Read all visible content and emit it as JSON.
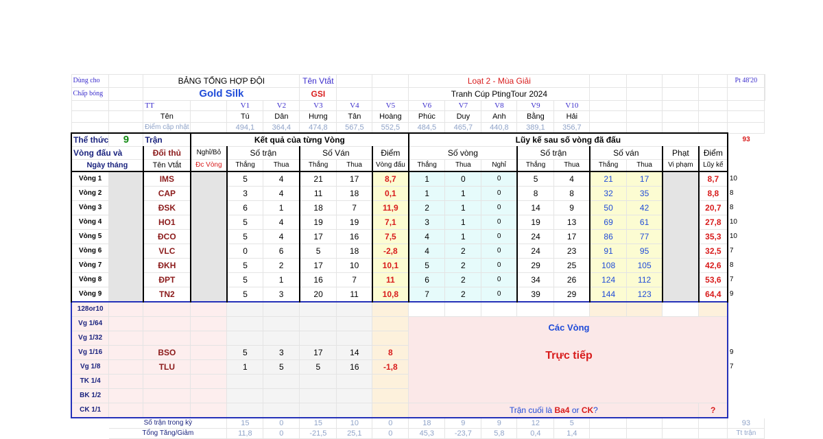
{
  "header": {
    "dung_cho": "Dùng cho",
    "chap_bong": "Chấp bóng",
    "title": "BẢNG TỔNG HỢP ĐỘI",
    "team_name": "Gold Silk",
    "ten_vtat_label": "Tên Vtắt",
    "ten_vtat": "GSI",
    "series": "Loạt 2 - Mùa Giải",
    "cup": "Tranh Cúp PtingTour 2024",
    "pt": "Pt 48'20"
  },
  "players": {
    "tt_label": "TT",
    "ten_label": "Tên",
    "diem_label": "Điểm cập nhật",
    "codes": [
      "V1",
      "V2",
      "V3",
      "V4",
      "V5",
      "V6",
      "V7",
      "V8",
      "V9",
      "V10"
    ],
    "names": [
      "Tú",
      "Dân",
      "Hưng",
      "Tân",
      "Hoàng",
      "Phúc",
      "Duy",
      "Anh",
      "Bằng",
      "Hải"
    ],
    "points": [
      "494,1",
      "364,4",
      "474,8",
      "567,5",
      "552,5",
      "484,5",
      "465,7",
      "440,8",
      "389,1",
      "356,7"
    ]
  },
  "format": {
    "the_thuc": "Thể thức",
    "num": "9",
    "tran": "Trận",
    "side_total": "93",
    "section_left": "Kết quả của từng Vòng",
    "section_right": "Lũy kế sau số vòng đã đấu"
  },
  "columns": {
    "vong_dau_va": "Vòng đấu và",
    "ngay_thang": "Ngày tháng",
    "doi_thu": "Đối thủ",
    "ten_vtat": "Tên Vtắt",
    "nghi_bo": "Nghỉ/Bỏ",
    "dc_vong": "Đc Vòng",
    "so_tran": "Số trận",
    "so_van": "Số Ván",
    "so_van_cum": "Số ván",
    "diem": "Điểm",
    "vong_dau": "Vòng đấu",
    "so_vong": "Số vòng",
    "so_tran_cum": "Số trận",
    "phat": "Phạt",
    "vi_pham": "Vi phạm",
    "diem_cum": "Điểm",
    "luy_ke": "Lũy kế",
    "thang": "Thắng",
    "thua": "Thua",
    "nghi": "Nghỉ"
  },
  "rounds": [
    {
      "label": "Vòng 1",
      "opp": "IMS",
      "st_w": "5",
      "st_l": "4",
      "sv_w": "21",
      "sv_l": "17",
      "pts": "8,7",
      "c_sv_w": "1",
      "c_sv_l": "0",
      "c_nghi": "0",
      "c_st_w": "5",
      "c_st_l": "4",
      "c_w": "21",
      "c_l": "17",
      "c_pts": "8,7",
      "side": "10"
    },
    {
      "label": "Vòng 2",
      "opp": "CAP",
      "st_w": "3",
      "st_l": "4",
      "sv_w": "11",
      "sv_l": "18",
      "pts": "0,1",
      "c_sv_w": "1",
      "c_sv_l": "1",
      "c_nghi": "0",
      "c_st_w": "8",
      "c_st_l": "8",
      "c_w": "32",
      "c_l": "35",
      "c_pts": "8,8",
      "side": "8"
    },
    {
      "label": "Vòng 3",
      "opp": "ĐSK",
      "st_w": "6",
      "st_l": "1",
      "sv_w": "18",
      "sv_l": "7",
      "pts": "11,9",
      "c_sv_w": "2",
      "c_sv_l": "1",
      "c_nghi": "0",
      "c_st_w": "14",
      "c_st_l": "9",
      "c_w": "50",
      "c_l": "42",
      "c_pts": "20,7",
      "side": "8"
    },
    {
      "label": "Vòng 4",
      "opp": "HO1",
      "st_w": "5",
      "st_l": "4",
      "sv_w": "19",
      "sv_l": "19",
      "pts": "7,1",
      "c_sv_w": "3",
      "c_sv_l": "1",
      "c_nghi": "0",
      "c_st_w": "19",
      "c_st_l": "13",
      "c_w": "69",
      "c_l": "61",
      "c_pts": "27,8",
      "side": "10"
    },
    {
      "label": "Vòng 5",
      "opp": "ĐCO",
      "st_w": "5",
      "st_l": "4",
      "sv_w": "17",
      "sv_l": "16",
      "pts": "7,5",
      "c_sv_w": "4",
      "c_sv_l": "1",
      "c_nghi": "0",
      "c_st_w": "24",
      "c_st_l": "17",
      "c_w": "86",
      "c_l": "77",
      "c_pts": "35,3",
      "side": "10"
    },
    {
      "label": "Vòng 6",
      "opp": "VLC",
      "st_w": "0",
      "st_l": "6",
      "sv_w": "5",
      "sv_l": "18",
      "pts": "-2,8",
      "c_sv_w": "4",
      "c_sv_l": "2",
      "c_nghi": "0",
      "c_st_w": "24",
      "c_st_l": "23",
      "c_w": "91",
      "c_l": "95",
      "c_pts": "32,5",
      "side": "7"
    },
    {
      "label": "Vòng 7",
      "opp": "ĐKH",
      "st_w": "5",
      "st_l": "2",
      "sv_w": "17",
      "sv_l": "10",
      "pts": "10,1",
      "c_sv_w": "5",
      "c_sv_l": "2",
      "c_nghi": "0",
      "c_st_w": "29",
      "c_st_l": "25",
      "c_w": "108",
      "c_l": "105",
      "c_pts": "42,6",
      "side": "8"
    },
    {
      "label": "Vòng 8",
      "opp": "ĐPT",
      "st_w": "5",
      "st_l": "1",
      "sv_w": "16",
      "sv_l": "7",
      "pts": "11",
      "c_sv_w": "6",
      "c_sv_l": "2",
      "c_nghi": "0",
      "c_st_w": "34",
      "c_st_l": "26",
      "c_w": "124",
      "c_l": "112",
      "c_pts": "53,6",
      "side": "7"
    },
    {
      "label": "Vòng 9",
      "opp": "TN2",
      "st_w": "5",
      "st_l": "3",
      "sv_w": "20",
      "sv_l": "11",
      "pts": "10,8",
      "c_sv_w": "7",
      "c_sv_l": "2",
      "c_nghi": "0",
      "c_st_w": "39",
      "c_st_l": "29",
      "c_w": "144",
      "c_l": "123",
      "c_pts": "64,4",
      "side": "9"
    }
  ],
  "knockout": [
    {
      "label": "128or10",
      "opp": "",
      "st_w": "",
      "st_l": "",
      "sv_w": "",
      "sv_l": "",
      "pts": "",
      "side": ""
    },
    {
      "label": "Vg 1/64",
      "opp": "",
      "st_w": "",
      "st_l": "",
      "sv_w": "",
      "sv_l": "",
      "pts": "",
      "side": ""
    },
    {
      "label": "Vg 1/32",
      "opp": "",
      "st_w": "",
      "st_l": "",
      "sv_w": "",
      "sv_l": "",
      "pts": "",
      "side": ""
    },
    {
      "label": "Vg 1/16",
      "opp": "BSO",
      "st_w": "5",
      "st_l": "3",
      "sv_w": "17",
      "sv_l": "14",
      "pts": "8",
      "side": "9"
    },
    {
      "label": "Vg 1/8",
      "opp": "TLU",
      "st_w": "1",
      "st_l": "5",
      "sv_w": "5",
      "sv_l": "16",
      "pts": "-1,8",
      "side": "7"
    },
    {
      "label": "TK 1/4",
      "opp": "",
      "st_w": "",
      "st_l": "",
      "sv_w": "",
      "sv_l": "",
      "pts": "",
      "side": ""
    },
    {
      "label": "BK 1/2",
      "opp": "",
      "st_w": "",
      "st_l": "",
      "sv_w": "",
      "sv_l": "",
      "pts": "",
      "side": ""
    },
    {
      "label": "CK 1/1",
      "opp": "",
      "st_w": "",
      "st_l": "",
      "sv_w": "",
      "sv_l": "",
      "pts": "",
      "side": ""
    }
  ],
  "panel": {
    "cac_vong": "Các Vòng",
    "truc_tiep": "Trực tiếp",
    "final_prefix": "Trận cuối là",
    "ba4": "Ba4",
    "or": "or",
    "ck": "CK",
    "qmark": "?",
    "q_red": "?"
  },
  "footer": {
    "so_tran_label": "Số trận trong kỳ",
    "so_tran_values": [
      "15",
      "0",
      "15",
      "10",
      "0",
      "18",
      "9",
      "9",
      "12",
      "5"
    ],
    "tong_label": "Tổng Tăng/Giảm",
    "tong_values": [
      "11,8",
      "0",
      "-21,5",
      "25,1",
      "0",
      "45,3",
      "-23,7",
      "5,8",
      "0,4",
      "1,4"
    ],
    "total_right": "93",
    "tt_tran": "Tt trận"
  },
  "colors": {
    "navy": "#1a237e",
    "blue": "#1f4bd8",
    "red": "#d81b1b",
    "dark_red": "#8b1a1a",
    "cyan_bg": "#e6fbfb",
    "yellow_bg": "#fcfcd2",
    "pink_bg": "#fdeeee"
  }
}
